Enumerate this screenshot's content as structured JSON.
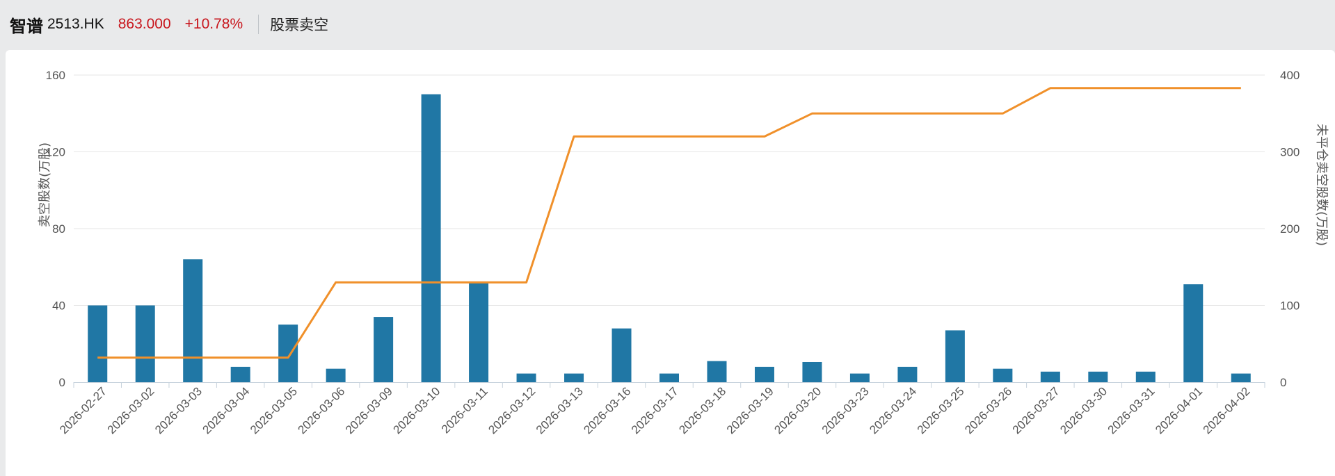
{
  "header": {
    "name": "智谱",
    "code": "2513.HK",
    "price": "863.000",
    "change": "+10.78%",
    "page_label": "股票卖空"
  },
  "chart_data": {
    "type": "bar",
    "categories": [
      "2026-02-27",
      "2026-03-02",
      "2026-03-03",
      "2026-03-04",
      "2026-03-05",
      "2026-03-06",
      "2026-03-09",
      "2026-03-10",
      "2026-03-11",
      "2026-03-12",
      "2026-03-13",
      "2026-03-16",
      "2026-03-17",
      "2026-03-18",
      "2026-03-19",
      "2026-03-20",
      "2026-03-23",
      "2026-03-24",
      "2026-03-25",
      "2026-03-26",
      "2026-03-27",
      "2026-03-30",
      "2026-03-31",
      "2026-04-01",
      "2026-04-02"
    ],
    "series": [
      {
        "type": "bar",
        "axis": "left",
        "color": "#2077a5",
        "values": [
          40,
          40,
          64,
          8,
          30,
          7,
          34,
          150,
          52,
          4.5,
          4.5,
          28,
          4.5,
          11,
          8,
          10.5,
          4.5,
          8,
          27,
          7,
          5.5,
          5.5,
          5.5,
          51,
          4.5
        ]
      },
      {
        "type": "line",
        "axis": "right",
        "color": "#f0902a",
        "values": [
          32,
          32,
          32,
          32,
          32,
          130,
          130,
          130,
          130,
          130,
          320,
          320,
          320,
          320,
          320,
          350,
          350,
          350,
          350,
          350,
          383,
          383,
          383,
          383,
          383
        ]
      }
    ],
    "ylabel": "卖空股数(万股)",
    "y2label": "未平仓卖空股数(万股)",
    "ylim": [
      0,
      160
    ],
    "y2lim": [
      0,
      400
    ],
    "yticks": [
      "0",
      "40",
      "80",
      "120",
      "160"
    ],
    "y2ticks": [
      "0",
      "100",
      "200",
      "300",
      "400"
    ],
    "grid": true
  }
}
